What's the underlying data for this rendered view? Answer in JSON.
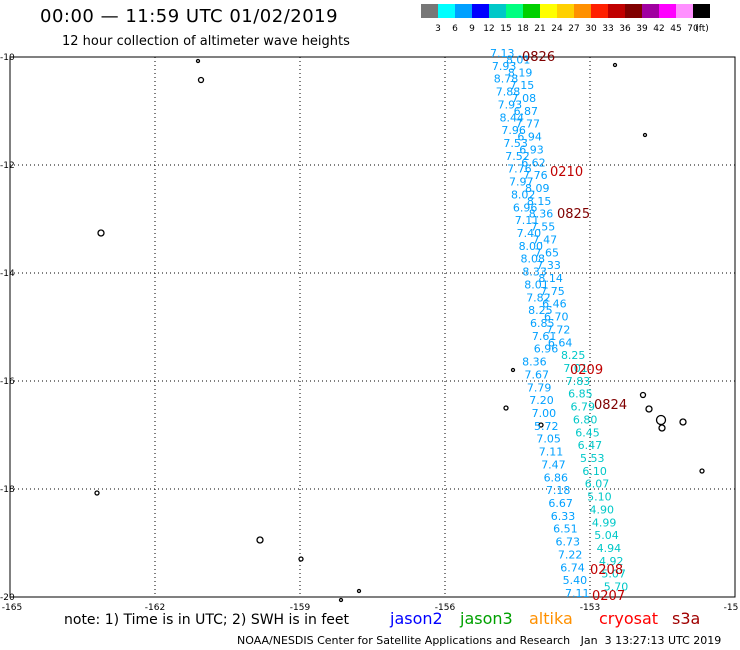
{
  "header": {
    "title": "00:00 — 11:59 UTC 01/02/2019",
    "subtitle": "12 hour collection of altimeter wave heights"
  },
  "legend": {
    "unit_label": "(ft)",
    "items": [
      {
        "label": "3",
        "color": "#777777"
      },
      {
        "label": "6",
        "color": "#00ffff"
      },
      {
        "label": "9",
        "color": "#00a0ff"
      },
      {
        "label": "12",
        "color": "#0000ff"
      },
      {
        "label": "15",
        "color": "#00c8c8"
      },
      {
        "label": "18",
        "color": "#00ff80"
      },
      {
        "label": "21",
        "color": "#00d000"
      },
      {
        "label": "24",
        "color": "#ffff00"
      },
      {
        "label": "27",
        "color": "#ffd000"
      },
      {
        "label": "30",
        "color": "#ff9000"
      },
      {
        "label": "33",
        "color": "#ff2000"
      },
      {
        "label": "36",
        "color": "#c00000"
      },
      {
        "label": "39",
        "color": "#800000"
      },
      {
        "label": "42",
        "color": "#a000a0"
      },
      {
        "label": "45",
        "color": "#ff00ff"
      },
      {
        "label": "70",
        "color": "#ff90ff"
      },
      {
        "label": "",
        "color": "#000000"
      }
    ]
  },
  "map": {
    "lat_labels": [
      "-10",
      "-12",
      "-14",
      "-16",
      "-18",
      "-20"
    ],
    "lon_labels": [
      "-165",
      "-162",
      "-159",
      "-156",
      "-153",
      "-15"
    ],
    "track_dark": [
      "7.13",
      "8.01",
      "7.93",
      "8.19",
      "8.78",
      "7.15",
      "7.88",
      "7.08",
      "7.93",
      "6.87",
      "8.44",
      "7.77",
      "7.96",
      "6.94",
      "7.53",
      "6.93",
      "7.52",
      "6.62",
      "7.76",
      "7.76",
      "7.97",
      "8.09",
      "8.02",
      "8.15",
      "6.96",
      "8.36",
      "7.11",
      "7.55",
      "7.40",
      "7.47",
      "8.00",
      "7.65",
      "8.08",
      "7.33",
      "8.33",
      "8.14",
      "8.01",
      "7.75",
      "7.82",
      "6.46",
      "8.25",
      "6.70",
      "6.85",
      "7.72",
      "7.61",
      "6.64",
      "6.96",
      "8.25",
      "8.36",
      "7.01",
      "7.67",
      "7.83",
      "7.79",
      "6.85",
      "7.20",
      "6.79",
      "7.00",
      "6.80",
      "5.72",
      "6.45",
      "7.05",
      "6.47",
      "7.11",
      "5.53",
      "7.47",
      "6.10",
      "6.86",
      "6.07",
      "7.18",
      "5.10",
      "6.67",
      "4.90",
      "6.33",
      "4.99",
      "6.51",
      "5.04",
      "6.73",
      "4.94",
      "7.22",
      "4.92",
      "6.74",
      "5.07",
      "5.40",
      "5.70",
      "7.11"
    ],
    "pass_times": [
      {
        "label": "0826",
        "color": "#800000"
      },
      {
        "label": "0210",
        "color": "#c00000"
      },
      {
        "label": "0825",
        "color": "#800000"
      },
      {
        "label": "0209",
        "color": "#c00000"
      },
      {
        "label": "0824",
        "color": "#800000"
      },
      {
        "label": "0208",
        "color": "#c00000"
      },
      {
        "label": "0207",
        "color": "#c00000"
      }
    ]
  },
  "note": "note:  1) Time is in UTC;  2) SWH is in feet",
  "satellites": [
    {
      "name": "jason2",
      "color": "#0000ff"
    },
    {
      "name": "jason3",
      "color": "#00a000"
    },
    {
      "name": "altika",
      "color": "#ff9000"
    },
    {
      "name": "cryosat",
      "color": "#ff0000"
    },
    {
      "name": "s3a",
      "color": "#a00000"
    }
  ],
  "footer": "NOAA/NESDIS Center for Satellite Applications and Research   Jan  3 13:27:13 UTC 2019"
}
